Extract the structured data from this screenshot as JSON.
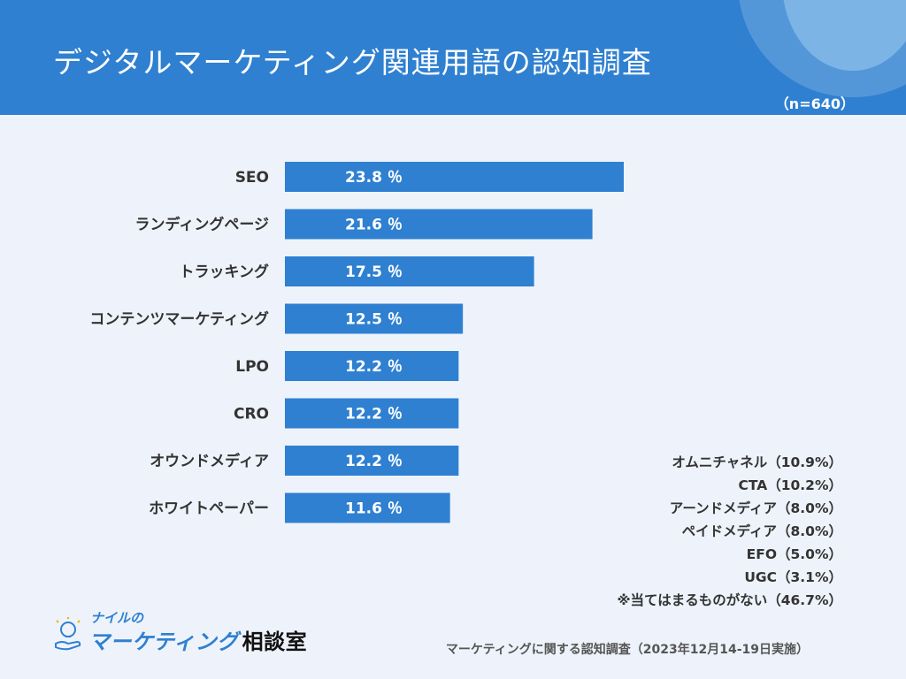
{
  "header": {
    "title": "デジタルマーケティング関連用語の認知調査",
    "sample_size": "（n=640）"
  },
  "chart_data": {
    "type": "bar",
    "orientation": "horizontal",
    "title": "デジタルマーケティング関連用語の認知調査",
    "categories": [
      "SEO",
      "ランディングページ",
      "トラッキング",
      "コンテンツマーケティング",
      "LPO",
      "CRO",
      "オウンドメディア",
      "ホワイトペーパー"
    ],
    "values": [
      23.8,
      21.6,
      17.5,
      12.5,
      12.2,
      12.2,
      12.2,
      11.6
    ],
    "value_labels": [
      "23.8 ％",
      "21.6 ％",
      "17.5 ％",
      "12.5 ％",
      "12.2 ％",
      "12.2 ％",
      "12.2 ％",
      "11.6 ％"
    ],
    "unit": "%",
    "xlim": [
      0,
      23.8
    ],
    "grid": false,
    "bar_color": "#2f80d1"
  },
  "others": [
    "オムニチャネル（10.9%）",
    "CTA（10.2%）",
    "アーンドメディア（8.0%）",
    "ペイドメディア（8.0%）",
    "EFO（5.0%）",
    "UGC（3.1%）",
    "※当てはまるものがない（46.7%）"
  ],
  "logo": {
    "small_text": "ナイルの",
    "main_text": "マーケティング",
    "tail_text": "相談室",
    "icon": "lightbulb-hand-icon"
  },
  "footnote": "マーケティングに関する認知調査（2023年12月14-19日実施）",
  "colors": {
    "header": "#2f80d1",
    "background": "#eef3fb",
    "bar": "#2f80d1"
  }
}
